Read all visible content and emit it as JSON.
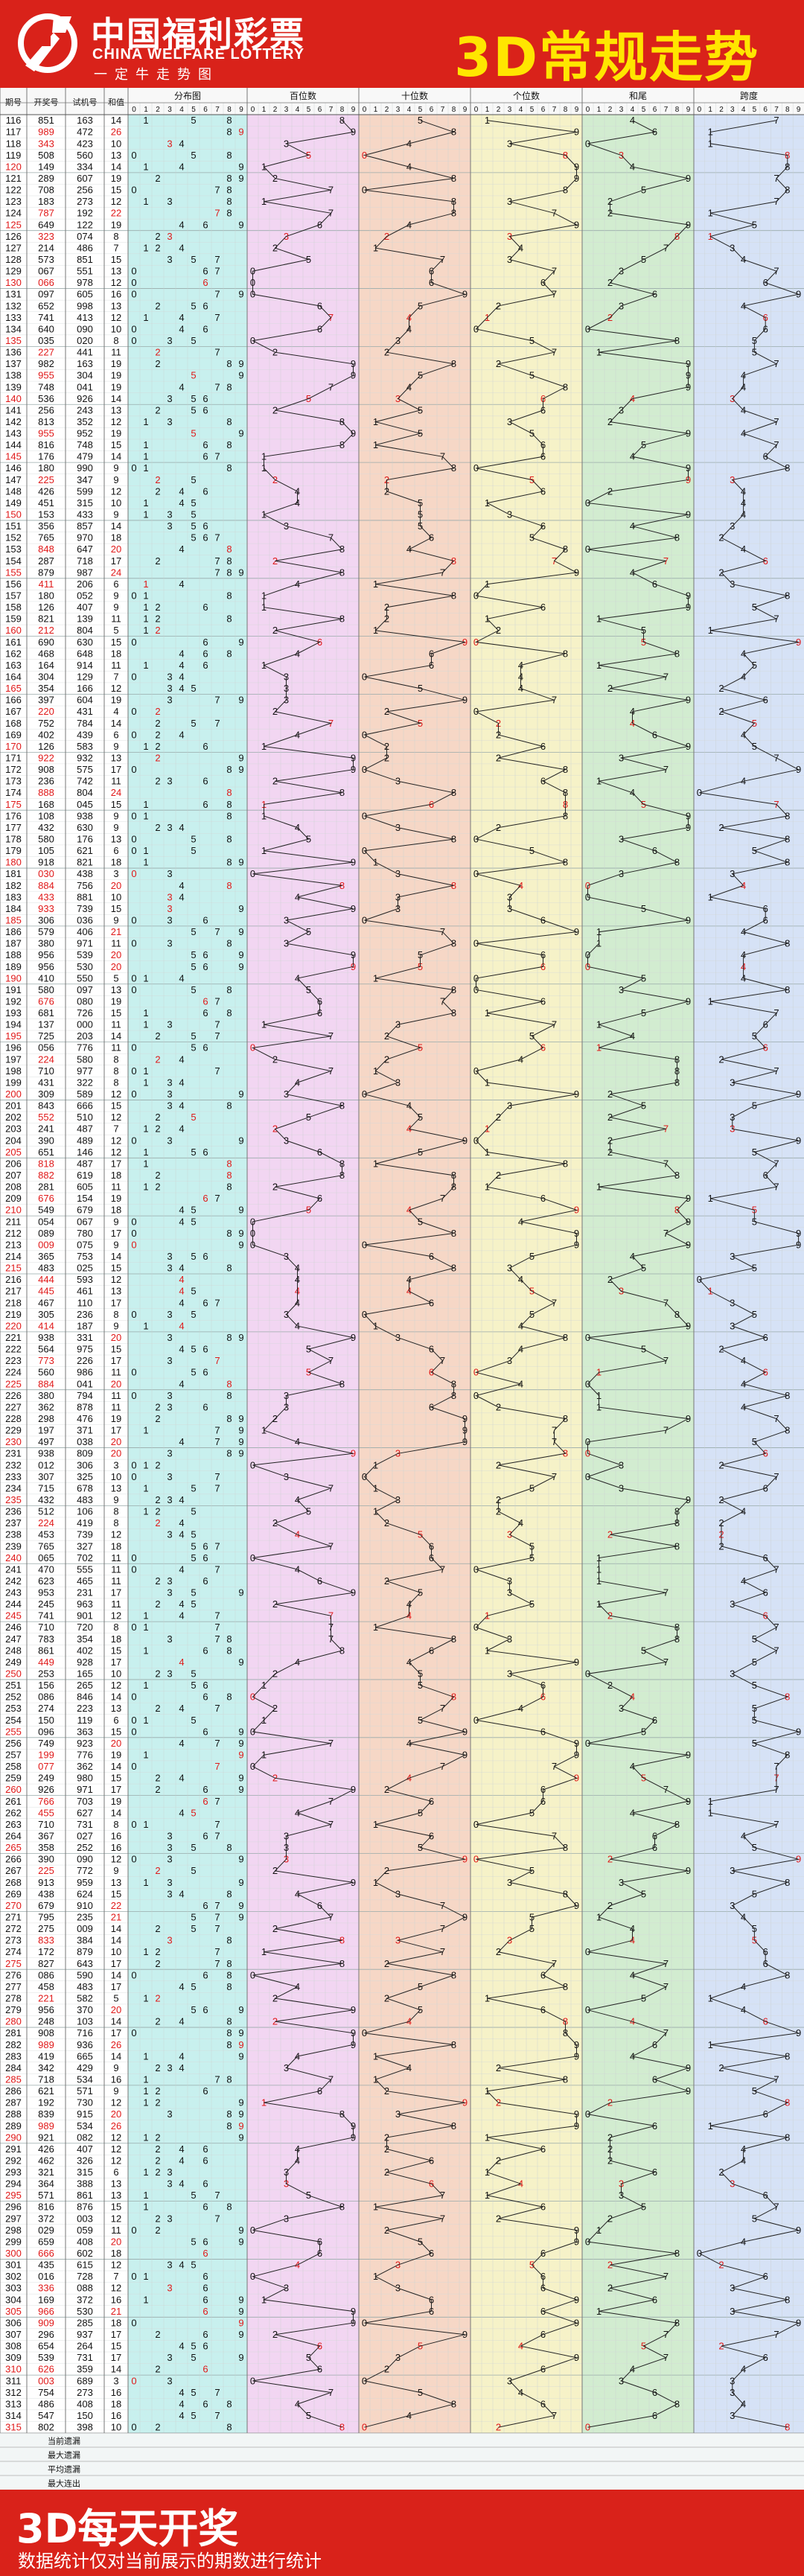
{
  "header": {
    "logo_cn": "中国福利彩票",
    "logo_en": "CHINA WELFARE LOTTERY",
    "logo_slogan": "一定牛走势图",
    "title": "3D常规走势"
  },
  "colors": {
    "brand_red": "#d9221a",
    "title_yellow": "#ffe600",
    "distribution_bg": "#c8f0ee",
    "hundreds_bg": "#f2d6f2",
    "tens_bg": "#f6d7c6",
    "units_bg": "#f6f2c8",
    "sum_tail_bg": "#d2ecd0",
    "span_bg": "#d6e2f6",
    "highlight_red": "#e01818",
    "highlight_blue": "#1830d0"
  },
  "chart_data": {
    "type": "table",
    "columns": {
      "issue": "期号",
      "draw": "开奖号",
      "trial": "试机号",
      "sum": "和值",
      "groups": [
        "分布图",
        "百位数",
        "十位数",
        "个位数",
        "和尾",
        "跨度"
      ]
    },
    "digits": [
      "0",
      "1",
      "2",
      "3",
      "4",
      "5",
      "6",
      "7",
      "8",
      "9"
    ],
    "rows": [
      [
        "116",
        "851",
        "163"
      ],
      [
        "117",
        "989",
        "472"
      ],
      [
        "118",
        "343",
        "423"
      ],
      [
        "119",
        "508",
        "560"
      ],
      [
        "120",
        "149",
        "334"
      ],
      [
        "121",
        "289",
        "607"
      ],
      [
        "122",
        "708",
        "256"
      ],
      [
        "123",
        "183",
        "273"
      ],
      [
        "124",
        "787",
        "192"
      ],
      [
        "125",
        "649",
        "122"
      ],
      [
        "126",
        "323",
        "074"
      ],
      [
        "127",
        "214",
        "486"
      ],
      [
        "128",
        "573",
        "851"
      ],
      [
        "129",
        "067",
        "551"
      ],
      [
        "130",
        "066",
        "978"
      ],
      [
        "131",
        "097",
        "605"
      ],
      [
        "132",
        "652",
        "998"
      ],
      [
        "133",
        "741",
        "413"
      ],
      [
        "134",
        "640",
        "090"
      ],
      [
        "135",
        "035",
        "020"
      ],
      [
        "136",
        "227",
        "441"
      ],
      [
        "137",
        "982",
        "163"
      ],
      [
        "138",
        "955",
        "304"
      ],
      [
        "139",
        "748",
        "041"
      ],
      [
        "140",
        "536",
        "926"
      ],
      [
        "141",
        "256",
        "243"
      ],
      [
        "142",
        "813",
        "352"
      ],
      [
        "143",
        "955",
        "952"
      ],
      [
        "144",
        "816",
        "748"
      ],
      [
        "145",
        "176",
        "479"
      ],
      [
        "146",
        "180",
        "990"
      ],
      [
        "147",
        "225",
        "347"
      ],
      [
        "148",
        "426",
        "599"
      ],
      [
        "149",
        "451",
        "315"
      ],
      [
        "150",
        "153",
        "433"
      ],
      [
        "151",
        "356",
        "857"
      ],
      [
        "152",
        "765",
        "970"
      ],
      [
        "153",
        "848",
        "647"
      ],
      [
        "154",
        "287",
        "718"
      ],
      [
        "155",
        "879",
        "987"
      ],
      [
        "156",
        "411",
        "206"
      ],
      [
        "157",
        "180",
        "052"
      ],
      [
        "158",
        "126",
        "407"
      ],
      [
        "159",
        "821",
        "139"
      ],
      [
        "160",
        "212",
        "804"
      ],
      [
        "161",
        "690",
        "630"
      ],
      [
        "162",
        "468",
        "648"
      ],
      [
        "163",
        "164",
        "914"
      ],
      [
        "164",
        "304",
        "129"
      ],
      [
        "165",
        "354",
        "166"
      ],
      [
        "166",
        "397",
        "604"
      ],
      [
        "167",
        "220",
        "431"
      ],
      [
        "168",
        "752",
        "784"
      ],
      [
        "169",
        "402",
        "439"
      ],
      [
        "170",
        "126",
        "583"
      ],
      [
        "171",
        "922",
        "932"
      ],
      [
        "172",
        "908",
        "575"
      ],
      [
        "173",
        "236",
        "742"
      ],
      [
        "174",
        "888",
        "804"
      ],
      [
        "175",
        "168",
        "045"
      ],
      [
        "176",
        "108",
        "938"
      ],
      [
        "177",
        "432",
        "630"
      ],
      [
        "178",
        "580",
        "176"
      ],
      [
        "179",
        "105",
        "621"
      ],
      [
        "180",
        "918",
        "821"
      ],
      [
        "181",
        "030",
        "438"
      ],
      [
        "182",
        "884",
        "756"
      ],
      [
        "183",
        "433",
        "881"
      ],
      [
        "184",
        "933",
        "739"
      ],
      [
        "185",
        "306",
        "036"
      ],
      [
        "186",
        "579",
        "406"
      ],
      [
        "187",
        "380",
        "971"
      ],
      [
        "188",
        "956",
        "539"
      ],
      [
        "189",
        "956",
        "530"
      ],
      [
        "190",
        "410",
        "550"
      ],
      [
        "191",
        "580",
        "097"
      ],
      [
        "192",
        "676",
        "080"
      ],
      [
        "193",
        "681",
        "726"
      ],
      [
        "194",
        "137",
        "000"
      ],
      [
        "195",
        "725",
        "203"
      ],
      [
        "196",
        "056",
        "776"
      ],
      [
        "197",
        "224",
        "580"
      ],
      [
        "198",
        "710",
        "977"
      ],
      [
        "199",
        "431",
        "322"
      ],
      [
        "200",
        "309",
        "589"
      ],
      [
        "201",
        "843",
        "666"
      ],
      [
        "202",
        "552",
        "510"
      ],
      [
        "203",
        "241",
        "487"
      ],
      [
        "204",
        "390",
        "489"
      ],
      [
        "205",
        "651",
        "146"
      ],
      [
        "206",
        "818",
        "487"
      ],
      [
        "207",
        "882",
        "619"
      ],
      [
        "208",
        "281",
        "605"
      ],
      [
        "209",
        "676",
        "154"
      ],
      [
        "210",
        "549",
        "679"
      ],
      [
        "211",
        "054",
        "067"
      ],
      [
        "212",
        "089",
        "780"
      ],
      [
        "213",
        "009",
        "075"
      ],
      [
        "214",
        "365",
        "753"
      ],
      [
        "215",
        "483",
        "025"
      ],
      [
        "216",
        "444",
        "593"
      ],
      [
        "217",
        "445",
        "461"
      ],
      [
        "218",
        "467",
        "110"
      ],
      [
        "219",
        "305",
        "236"
      ],
      [
        "220",
        "414",
        "187"
      ],
      [
        "221",
        "938",
        "331"
      ],
      [
        "222",
        "564",
        "975"
      ],
      [
        "223",
        "773",
        "226"
      ],
      [
        "224",
        "560",
        "986"
      ],
      [
        "225",
        "884",
        "041"
      ],
      [
        "226",
        "380",
        "794"
      ],
      [
        "227",
        "362",
        "878"
      ],
      [
        "228",
        "298",
        "476"
      ],
      [
        "229",
        "197",
        "371"
      ],
      [
        "230",
        "497",
        "038"
      ],
      [
        "231",
        "938",
        "809"
      ],
      [
        "232",
        "012",
        "306"
      ],
      [
        "233",
        "307",
        "325"
      ],
      [
        "234",
        "715",
        "678"
      ],
      [
        "235",
        "432",
        "483"
      ],
      [
        "236",
        "512",
        "106"
      ],
      [
        "237",
        "224",
        "419"
      ],
      [
        "238",
        "453",
        "739"
      ],
      [
        "239",
        "765",
        "327"
      ],
      [
        "240",
        "065",
        "702"
      ],
      [
        "241",
        "470",
        "555"
      ],
      [
        "242",
        "623",
        "465"
      ],
      [
        "243",
        "953",
        "231"
      ],
      [
        "244",
        "245",
        "963"
      ],
      [
        "245",
        "741",
        "901"
      ],
      [
        "246",
        "710",
        "720"
      ],
      [
        "247",
        "783",
        "354"
      ],
      [
        "248",
        "861",
        "402"
      ],
      [
        "249",
        "449",
        "928"
      ],
      [
        "250",
        "253",
        "165"
      ],
      [
        "251",
        "156",
        "265"
      ],
      [
        "252",
        "086",
        "846"
      ],
      [
        "253",
        "274",
        "223"
      ],
      [
        "254",
        "150",
        "119"
      ],
      [
        "255",
        "096",
        "363"
      ],
      [
        "256",
        "749",
        "923"
      ],
      [
        "257",
        "199",
        "776"
      ],
      [
        "258",
        "077",
        "362"
      ],
      [
        "259",
        "249",
        "980"
      ],
      [
        "260",
        "926",
        "971"
      ],
      [
        "261",
        "766",
        "703"
      ],
      [
        "262",
        "455",
        "627"
      ],
      [
        "263",
        "710",
        "731"
      ],
      [
        "264",
        "367",
        "027"
      ],
      [
        "265",
        "358",
        "252"
      ],
      [
        "266",
        "390",
        "090"
      ],
      [
        "267",
        "225",
        "772"
      ],
      [
        "268",
        "913",
        "959"
      ],
      [
        "269",
        "438",
        "624"
      ],
      [
        "270",
        "679",
        "910"
      ],
      [
        "271",
        "795",
        "235"
      ],
      [
        "272",
        "275",
        "009"
      ],
      [
        "273",
        "833",
        "384"
      ],
      [
        "274",
        "172",
        "879"
      ],
      [
        "275",
        "827",
        "643"
      ],
      [
        "276",
        "086",
        "590"
      ],
      [
        "277",
        "458",
        "483"
      ],
      [
        "278",
        "221",
        "582"
      ],
      [
        "279",
        "956",
        "370"
      ],
      [
        "280",
        "248",
        "103"
      ],
      [
        "281",
        "908",
        "716"
      ],
      [
        "282",
        "989",
        "936"
      ],
      [
        "283",
        "419",
        "665"
      ],
      [
        "284",
        "342",
        "429"
      ],
      [
        "285",
        "718",
        "534"
      ],
      [
        "286",
        "621",
        "571"
      ],
      [
        "287",
        "192",
        "730"
      ],
      [
        "288",
        "839",
        "915"
      ],
      [
        "289",
        "989",
        "534"
      ],
      [
        "290",
        "921",
        "082"
      ],
      [
        "291",
        "426",
        "407"
      ],
      [
        "292",
        "462",
        "326"
      ],
      [
        "293",
        "321",
        "315"
      ],
      [
        "294",
        "364",
        "388"
      ],
      [
        "295",
        "571",
        "861"
      ],
      [
        "296",
        "816",
        "876"
      ],
      [
        "297",
        "372",
        "003"
      ],
      [
        "298",
        "029",
        "059"
      ],
      [
        "299",
        "659",
        "408"
      ],
      [
        "300",
        "666",
        "602"
      ],
      [
        "301",
        "435",
        "615"
      ],
      [
        "302",
        "016",
        "728"
      ],
      [
        "303",
        "336",
        "088"
      ],
      [
        "304",
        "169",
        "372"
      ],
      [
        "305",
        "966",
        "530"
      ],
      [
        "306",
        "909",
        "285"
      ],
      [
        "307",
        "296",
        "937"
      ],
      [
        "308",
        "654",
        "264"
      ],
      [
        "309",
        "539",
        "731"
      ],
      [
        "310",
        "626",
        "359"
      ],
      [
        "311",
        "003",
        "689"
      ],
      [
        "312",
        "754",
        "273"
      ],
      [
        "313",
        "486",
        "408"
      ],
      [
        "314",
        "547",
        "150"
      ],
      [
        "315",
        "802",
        "398"
      ]
    ],
    "stats": {
      "labels": [
        "当前遗漏",
        "最大遗漏",
        "平均遗漏",
        "最大连出"
      ]
    }
  },
  "footer": {
    "title": "3D每天开奖",
    "note": "数据统计仅对当前展示的期数进行统计"
  }
}
